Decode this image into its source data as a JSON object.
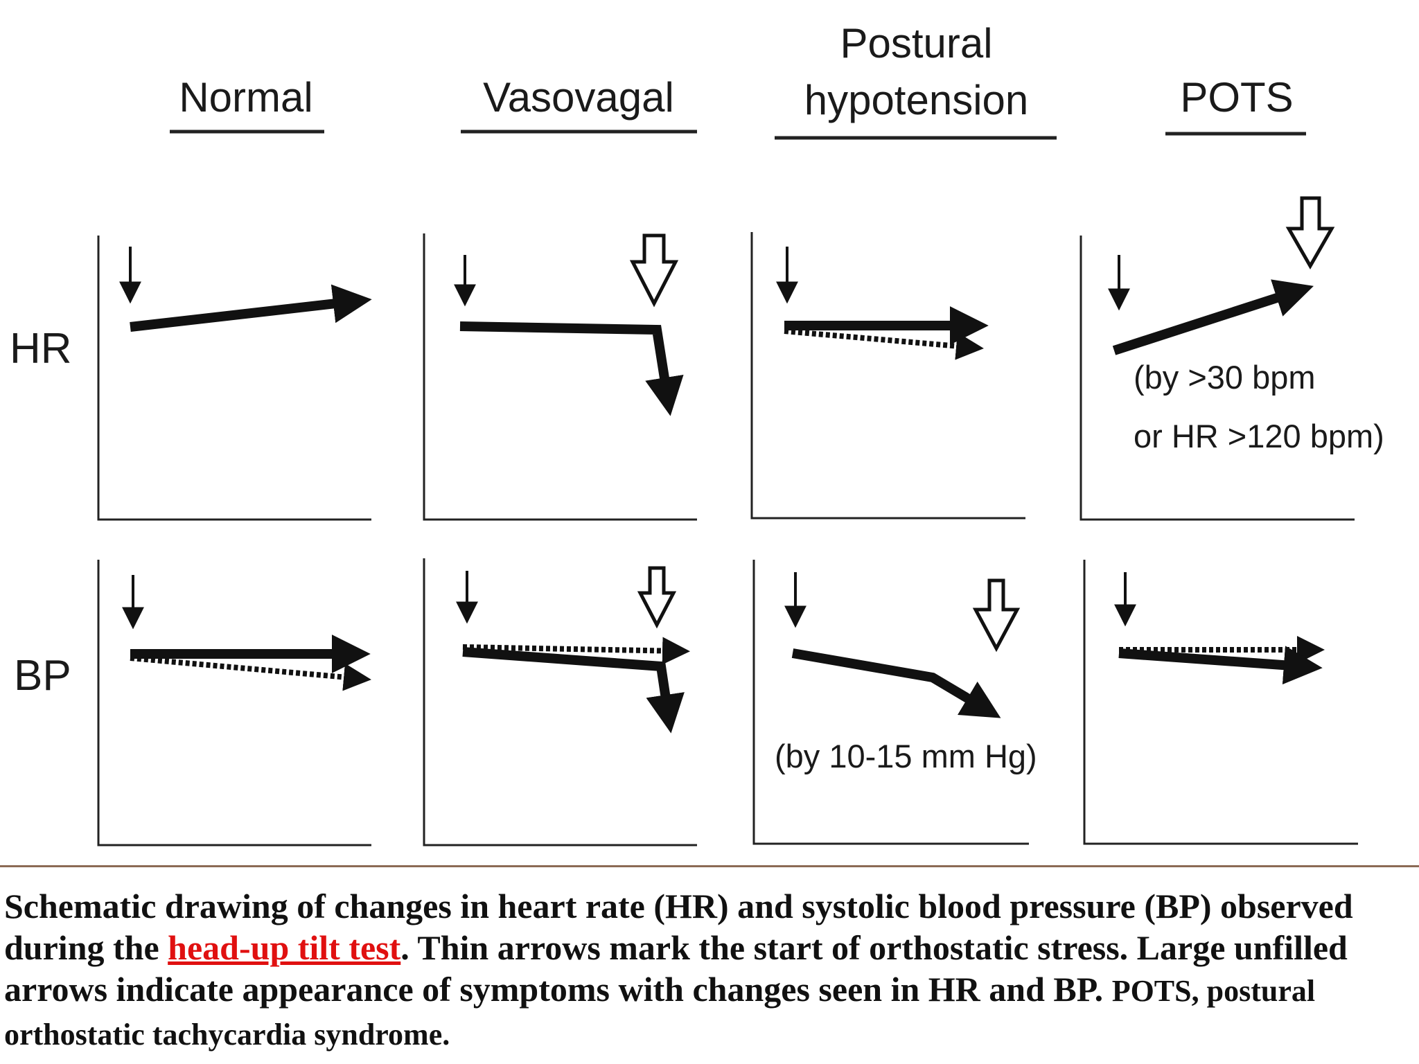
{
  "columns": [
    {
      "id": "normal",
      "title_lines": [
        "Normal"
      ]
    },
    {
      "id": "vasovagal",
      "title_lines": [
        "Vasovagal"
      ]
    },
    {
      "id": "postural",
      "title_lines": [
        "Postural",
        "hypotension"
      ]
    },
    {
      "id": "pots",
      "title_lines": [
        "POTS"
      ]
    }
  ],
  "row_labels": {
    "hr": "HR",
    "bp": "BP"
  },
  "annotations": {
    "pots_hr_line1": "(by >30 bpm",
    "pots_hr_line2": "or HR >120 bpm)",
    "postural_bp": "(by 10-15 mm Hg)"
  },
  "caption": {
    "part1": "Schematic drawing of changes in heart rate (HR) and systolic blood pressure (BP) observed during the ",
    "link": "head-up tilt test",
    "part2": ". Thin arrows mark the start of orthostatic stress. Large unfilled arrows indicate appearance of symptoms with changes seen in HR and BP. ",
    "small": "POTS, postural orthostatic tachycardia syndrome."
  },
  "colors": {
    "ink": "#111111",
    "link": "#e01010",
    "divider": "#8b6a55"
  }
}
